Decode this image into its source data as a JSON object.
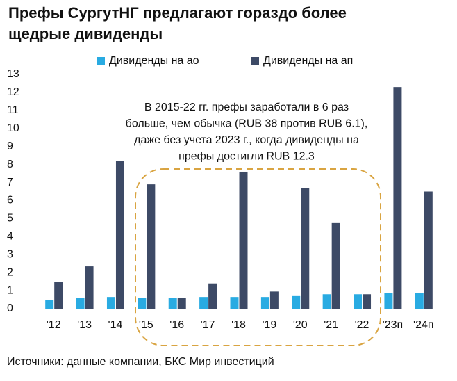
{
  "chart_data": {
    "type": "bar",
    "title": [
      "Префы СургутНГ предлагают гораздо более",
      "щедрые дивиденды"
    ],
    "categories": [
      "'12",
      "'13",
      "'14",
      "'15",
      "'16",
      "'17",
      "'18",
      "'19",
      "'20",
      "'21",
      "'22",
      "'23п",
      "'24п"
    ],
    "series": [
      {
        "name": "Дивиденды на ао",
        "color": "#29abe2",
        "values": [
          0.5,
          0.6,
          0.65,
          0.6,
          0.6,
          0.65,
          0.65,
          0.65,
          0.7,
          0.8,
          0.8,
          0.85,
          0.85
        ]
      },
      {
        "name": "Дивиденды на ап",
        "color": "#3d4a66",
        "values": [
          1.5,
          2.35,
          8.2,
          6.9,
          0.6,
          1.4,
          7.6,
          0.95,
          6.7,
          4.75,
          0.8,
          12.3,
          6.5
        ]
      }
    ],
    "ylim": [
      0,
      13
    ],
    "yticks": [
      0,
      1,
      2,
      3,
      4,
      5,
      6,
      7,
      8,
      9,
      10,
      11,
      12,
      13
    ],
    "annotation": [
      "В 2015-22 гг. префы заработали в 6 раз",
      "больше, чем обычка (RUB 38 против RUB 6.1),",
      "даже без учета 2023 г., когда дивиденды на",
      "префы достигли RUB 12.3"
    ],
    "source": "Источники: данные компании, БКС Мир инвестиций"
  }
}
